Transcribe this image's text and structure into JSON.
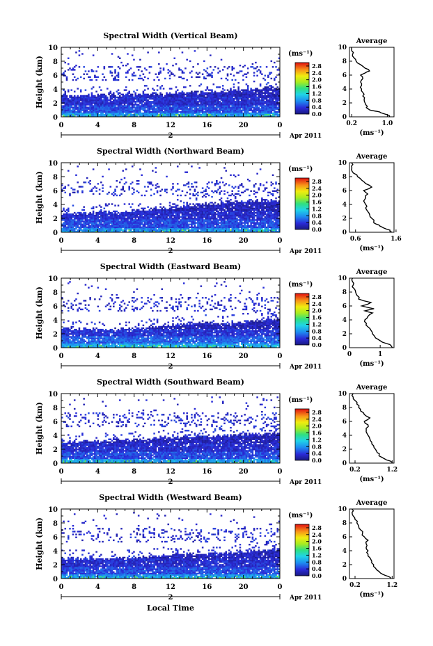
{
  "figure": {
    "xlabel": "Local Time",
    "date_label": "Apr 2011",
    "day_label": "2"
  },
  "chart_data": [
    {
      "type": "heatmap",
      "title": "Spectral Width (Vertical Beam)",
      "ylabel": "Height (km)",
      "x_ticks": [
        "0",
        "4",
        "8",
        "12",
        "16",
        "20",
        "0"
      ],
      "y_ticks": [
        "0",
        "2",
        "4",
        "6",
        "8",
        "10"
      ],
      "xlim": [
        0,
        24
      ],
      "ylim": [
        0,
        10
      ],
      "colorbar": {
        "unit": "(ms⁻¹)",
        "ticks": [
          "0.0",
          "0.4",
          "0.8",
          "1.2",
          "1.6",
          "2.0",
          "2.4",
          "2.8"
        ],
        "range": [
          0,
          3.0
        ]
      },
      "layers": [
        {
          "h": 0.6,
          "v": 0.75
        },
        {
          "h": 1.7,
          "v": 0.45
        },
        {
          "h": 2.9,
          "v": 0.3
        },
        {
          "h": 4.4,
          "v": 0.2
        },
        {
          "h": 6.5,
          "v": 0.15
        }
      ],
      "top_height": [
        2.9,
        3.0,
        3.1,
        3.2,
        3.2,
        3.3,
        3.3,
        3.4,
        3.5,
        3.6,
        3.7,
        3.9,
        4.1,
        4.2
      ],
      "profile": {
        "title": "Average",
        "xlabel": "(ms⁻¹)",
        "xlim": [
          0.15,
          1.15
        ],
        "x_ticks": [
          "0.2",
          "1.0"
        ],
        "y_ticks": [
          "0",
          "2",
          "4",
          "6",
          "8",
          "10"
        ],
        "heights": [
          0,
          0.3,
          0.6,
          0.8,
          1.0,
          1.2,
          1.5,
          2.0,
          2.5,
          3.0,
          3.5,
          4.0,
          4.5,
          5.0,
          5.5,
          6.0,
          6.3,
          6.6,
          7.0,
          7.5,
          8.0,
          8.5,
          9.0,
          9.5,
          10.0
        ],
        "values": [
          1.05,
          1.0,
          0.85,
          0.75,
          0.6,
          0.55,
          0.55,
          0.5,
          0.48,
          0.45,
          0.45,
          0.42,
          0.42,
          0.4,
          0.45,
          0.4,
          0.5,
          0.6,
          0.5,
          0.4,
          0.3,
          0.25,
          0.22,
          0.2,
          0.2
        ]
      }
    },
    {
      "type": "heatmap",
      "title": "Spectral Width (Northward Beam)",
      "ylabel": "Height (km)",
      "x_ticks": [
        "0",
        "4",
        "8",
        "12",
        "16",
        "20",
        "0"
      ],
      "y_ticks": [
        "0",
        "2",
        "4",
        "6",
        "8",
        "10"
      ],
      "xlim": [
        0,
        24
      ],
      "ylim": [
        0,
        10
      ],
      "colorbar": {
        "unit": "(ms⁻¹)",
        "ticks": [
          "0.0",
          "0.4",
          "0.8",
          "1.2",
          "1.6",
          "2.0",
          "2.4",
          "2.8"
        ],
        "range": [
          0,
          3.0
        ]
      },
      "layers": [
        {
          "h": 0.6,
          "v": 0.7
        },
        {
          "h": 1.8,
          "v": 0.45
        },
        {
          "h": 3.2,
          "v": 0.3
        },
        {
          "h": 5.2,
          "v": 0.2
        },
        {
          "h": 6.8,
          "v": 0.15
        }
      ],
      "top_height": [
        2.6,
        2.7,
        2.8,
        2.9,
        3.0,
        3.2,
        3.4,
        3.6,
        3.9,
        4.1,
        4.3,
        4.4,
        4.5,
        4.6
      ],
      "profile": {
        "title": "Average",
        "xlabel": "(ms⁻¹)",
        "xlim": [
          0.45,
          1.55
        ],
        "x_ticks": [
          "0.6",
          "1.6"
        ],
        "y_ticks": [
          "0",
          "2",
          "4",
          "6",
          "8",
          "10"
        ],
        "heights": [
          0,
          0.3,
          0.6,
          0.9,
          1.2,
          1.5,
          2.0,
          2.5,
          3.0,
          3.5,
          4.0,
          4.5,
          5.0,
          5.5,
          6.0,
          6.5,
          7.0,
          7.5,
          8.0,
          8.5,
          9.0,
          9.5,
          10.0
        ],
        "values": [
          1.5,
          1.45,
          1.3,
          1.2,
          1.1,
          1.05,
          1.0,
          0.95,
          0.9,
          0.85,
          0.85,
          0.8,
          0.85,
          0.9,
          0.8,
          1.0,
          0.85,
          0.75,
          0.65,
          0.55,
          0.5,
          0.5,
          0.5
        ]
      }
    },
    {
      "type": "heatmap",
      "title": "Spectral Width (Eastward Beam)",
      "ylabel": "Height (km)",
      "x_ticks": [
        "0",
        "4",
        "8",
        "12",
        "16",
        "20",
        "0"
      ],
      "y_ticks": [
        "0",
        "2",
        "4",
        "6",
        "8",
        "10"
      ],
      "xlim": [
        0,
        24
      ],
      "ylim": [
        0,
        10
      ],
      "colorbar": {
        "unit": "(ms⁻¹)",
        "ticks": [
          "0.0",
          "0.4",
          "0.8",
          "1.2",
          "1.6",
          "2.0",
          "2.4",
          "2.8"
        ],
        "range": [
          0,
          3.0
        ]
      },
      "layers": [
        {
          "h": 0.6,
          "v": 0.85
        },
        {
          "h": 1.6,
          "v": 0.55
        },
        {
          "h": 2.8,
          "v": 0.35
        },
        {
          "h": 4.2,
          "v": 0.2
        },
        {
          "h": 6.5,
          "v": 0.15
        }
      ],
      "top_height": [
        2.8,
        2.7,
        2.6,
        2.5,
        2.7,
        3.0,
        3.2,
        3.3,
        3.5,
        3.6,
        3.5,
        3.8,
        4.0,
        4.2
      ],
      "profile": {
        "title": "Average",
        "xlabel": "(ms⁻¹)",
        "xlim": [
          0.0,
          1.45
        ],
        "x_ticks": [
          "0",
          "1"
        ],
        "y_ticks": [
          "0",
          "2",
          "4",
          "6",
          "8",
          "10"
        ],
        "heights": [
          0,
          0.3,
          0.6,
          1.0,
          1.4,
          2.0,
          2.5,
          3.0,
          3.5,
          4.0,
          4.5,
          5.0,
          5.3,
          5.6,
          6.0,
          6.5,
          7.0,
          7.5,
          8.0,
          8.5,
          9.0,
          9.5,
          10.0
        ],
        "values": [
          1.4,
          1.35,
          1.2,
          1.0,
          0.85,
          0.75,
          0.7,
          0.6,
          0.55,
          0.5,
          0.6,
          0.75,
          0.5,
          0.8,
          0.4,
          0.7,
          0.3,
          0.25,
          0.2,
          0.15,
          0.12,
          0.1,
          0.1
        ]
      }
    },
    {
      "type": "heatmap",
      "title": "Spectral Width (Southward Beam)",
      "ylabel": "Height (km)",
      "x_ticks": [
        "0",
        "4",
        "8",
        "12",
        "16",
        "20",
        "0"
      ],
      "y_ticks": [
        "0",
        "2",
        "4",
        "6",
        "8",
        "10"
      ],
      "xlim": [
        0,
        24
      ],
      "ylim": [
        0,
        10
      ],
      "colorbar": {
        "unit": "(ms⁻¹)",
        "ticks": [
          "0.0",
          "0.4",
          "0.8",
          "1.2",
          "1.6",
          "2.0",
          "2.4",
          "2.8"
        ],
        "range": [
          0,
          3.0
        ]
      },
      "layers": [
        {
          "h": 0.6,
          "v": 0.75
        },
        {
          "h": 1.7,
          "v": 0.45
        },
        {
          "h": 3.0,
          "v": 0.3
        },
        {
          "h": 5.0,
          "v": 0.2
        },
        {
          "h": 6.6,
          "v": 0.15
        }
      ],
      "top_height": [
        3.0,
        3.1,
        3.1,
        3.2,
        3.3,
        3.4,
        3.6,
        3.7,
        3.8,
        3.9,
        4.0,
        4.1,
        4.2,
        4.3
      ],
      "profile": {
        "title": "Average",
        "xlabel": "(ms⁻¹)",
        "xlim": [
          0.05,
          1.25
        ],
        "x_ticks": [
          "0.2",
          "1.2"
        ],
        "y_ticks": [
          "0",
          "2",
          "4",
          "6",
          "8",
          "10"
        ],
        "heights": [
          0,
          0.3,
          0.6,
          0.9,
          1.2,
          1.5,
          2.0,
          2.5,
          3.0,
          3.5,
          4.0,
          4.5,
          5.0,
          5.5,
          6.0,
          6.5,
          7.0,
          7.5,
          8.0,
          8.5,
          9.0,
          9.5,
          10.0
        ],
        "values": [
          1.2,
          1.15,
          1.0,
          0.9,
          0.85,
          0.8,
          0.75,
          0.7,
          0.65,
          0.6,
          0.55,
          0.5,
          0.5,
          0.55,
          0.45,
          0.6,
          0.45,
          0.35,
          0.3,
          0.25,
          0.2,
          0.15,
          0.15
        ]
      }
    },
    {
      "type": "heatmap",
      "title": "Spectral Width (Westward Beam)",
      "ylabel": "Height (km)",
      "x_ticks": [
        "0",
        "4",
        "8",
        "12",
        "16",
        "20",
        "0"
      ],
      "y_ticks": [
        "0",
        "2",
        "4",
        "6",
        "8",
        "10"
      ],
      "xlim": [
        0,
        24
      ],
      "ylim": [
        0,
        10
      ],
      "colorbar": {
        "unit": "(ms⁻¹)",
        "ticks": [
          "0.0",
          "0.4",
          "0.8",
          "1.2",
          "1.6",
          "2.0",
          "2.4",
          "2.8"
        ],
        "range": [
          0,
          3.0
        ]
      },
      "layers": [
        {
          "h": 0.6,
          "v": 0.75
        },
        {
          "h": 1.7,
          "v": 0.45
        },
        {
          "h": 2.9,
          "v": 0.3
        },
        {
          "h": 4.5,
          "v": 0.2
        },
        {
          "h": 6.6,
          "v": 0.15
        }
      ],
      "top_height": [
        2.9,
        2.9,
        2.8,
        2.8,
        2.9,
        3.1,
        3.3,
        3.4,
        3.5,
        3.6,
        3.7,
        3.9,
        4.1,
        4.2
      ],
      "profile": {
        "title": "Average",
        "xlabel": "(ms⁻¹)",
        "xlim": [
          0.05,
          1.25
        ],
        "x_ticks": [
          "0.2",
          "1.2"
        ],
        "y_ticks": [
          "0",
          "2",
          "4",
          "6",
          "8",
          "10"
        ],
        "heights": [
          0,
          0.3,
          0.6,
          1.0,
          1.5,
          2.0,
          2.5,
          3.0,
          3.5,
          4.0,
          4.5,
          5.0,
          5.5,
          6.0,
          6.5,
          7.0,
          7.5,
          8.0,
          8.5,
          9.0,
          9.5,
          10.0
        ],
        "values": [
          1.15,
          1.1,
          0.95,
          0.85,
          0.75,
          0.7,
          0.65,
          0.6,
          0.55,
          0.55,
          0.5,
          0.5,
          0.55,
          0.45,
          0.4,
          0.35,
          0.3,
          0.25,
          0.2,
          0.15,
          0.12,
          0.12
        ]
      }
    }
  ]
}
